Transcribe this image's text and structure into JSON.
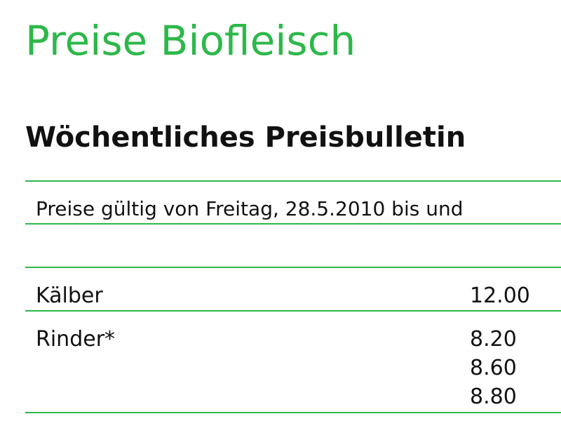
{
  "title": "Preise Biofleisch",
  "subtitle": "Wöchentliches Preisbulletin",
  "validity": "Preise gültig von Freitag, 28.5.2010 bis und",
  "rows": [
    {
      "label": "Kälber",
      "prices": [
        "12.00"
      ]
    },
    {
      "label": "Rinder*",
      "prices": [
        "8.20",
        "8.60",
        "8.80"
      ]
    }
  ],
  "colors": {
    "accent": "#2db84a",
    "text": "#111111"
  }
}
